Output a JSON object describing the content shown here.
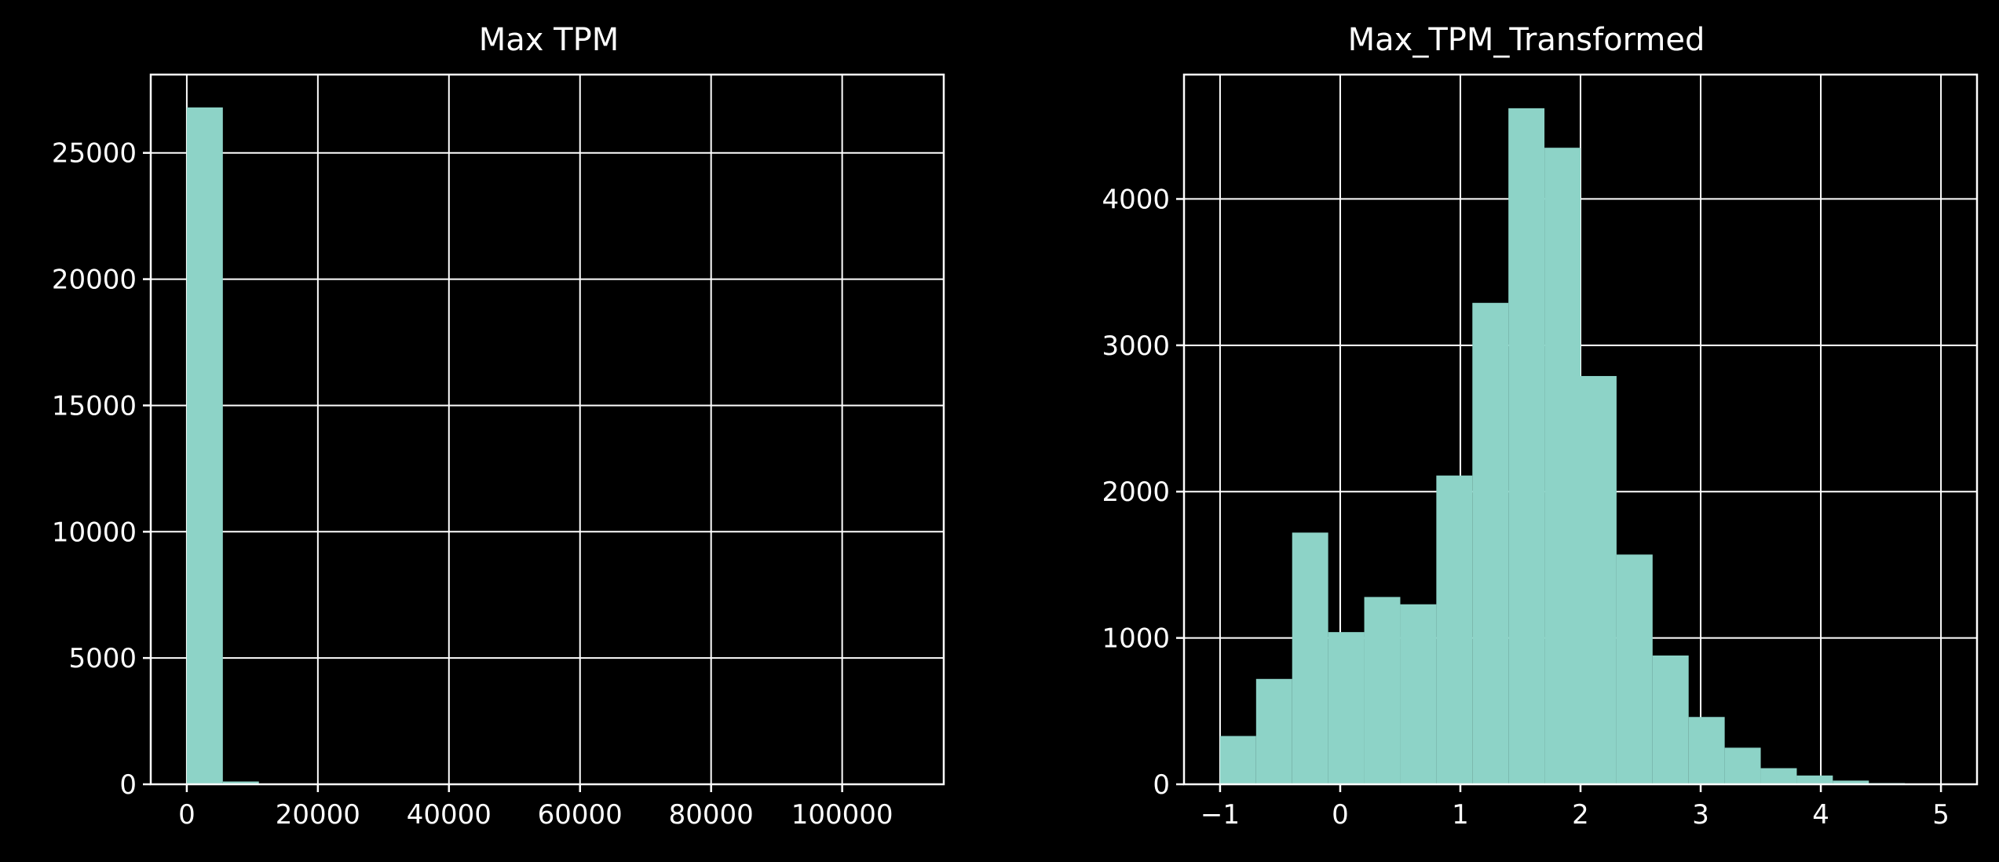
{
  "chart_data": [
    {
      "type": "bar",
      "title": "Max TPM",
      "xlabel": "",
      "ylabel": "",
      "xlim": [
        -5500,
        115500
      ],
      "ylim": [
        0,
        28100
      ],
      "xticks": [
        0,
        20000,
        40000,
        60000,
        80000,
        100000
      ],
      "xtick_labels": [
        "0",
        "20000",
        "40000",
        "60000",
        "80000",
        "100000"
      ],
      "yticks": [
        0,
        5000,
        10000,
        15000,
        20000,
        25000
      ],
      "ytick_labels": [
        "0",
        "5000",
        "10000",
        "15000",
        "20000",
        "25000"
      ],
      "bin_start": 0,
      "bin_width": 5500,
      "values": [
        26800,
        110,
        20,
        10,
        5,
        3,
        2,
        2,
        1,
        1,
        1,
        1,
        0,
        0,
        0,
        0,
        0,
        0,
        0,
        1
      ],
      "grid": true,
      "color": "#8dd3c7"
    },
    {
      "type": "bar",
      "title": "Max_TPM_Transformed",
      "xlabel": "",
      "ylabel": "",
      "xlim": [
        -1.3,
        5.3
      ],
      "ylim": [
        0,
        4850
      ],
      "xticks": [
        -1,
        0,
        1,
        2,
        3,
        4,
        5
      ],
      "xtick_labels": [
        "−1",
        "0",
        "1",
        "2",
        "3",
        "4",
        "5"
      ],
      "yticks": [
        0,
        1000,
        2000,
        3000,
        4000
      ],
      "ytick_labels": [
        "0",
        "1000",
        "2000",
        "3000",
        "4000"
      ],
      "bin_start": -1,
      "bin_width": 0.3,
      "values": [
        330,
        720,
        1720,
        1040,
        1280,
        1230,
        2110,
        3290,
        4620,
        4350,
        2790,
        1570,
        880,
        460,
        250,
        110,
        60,
        25,
        8,
        3
      ],
      "grid": true,
      "color": "#8dd3c7"
    }
  ]
}
